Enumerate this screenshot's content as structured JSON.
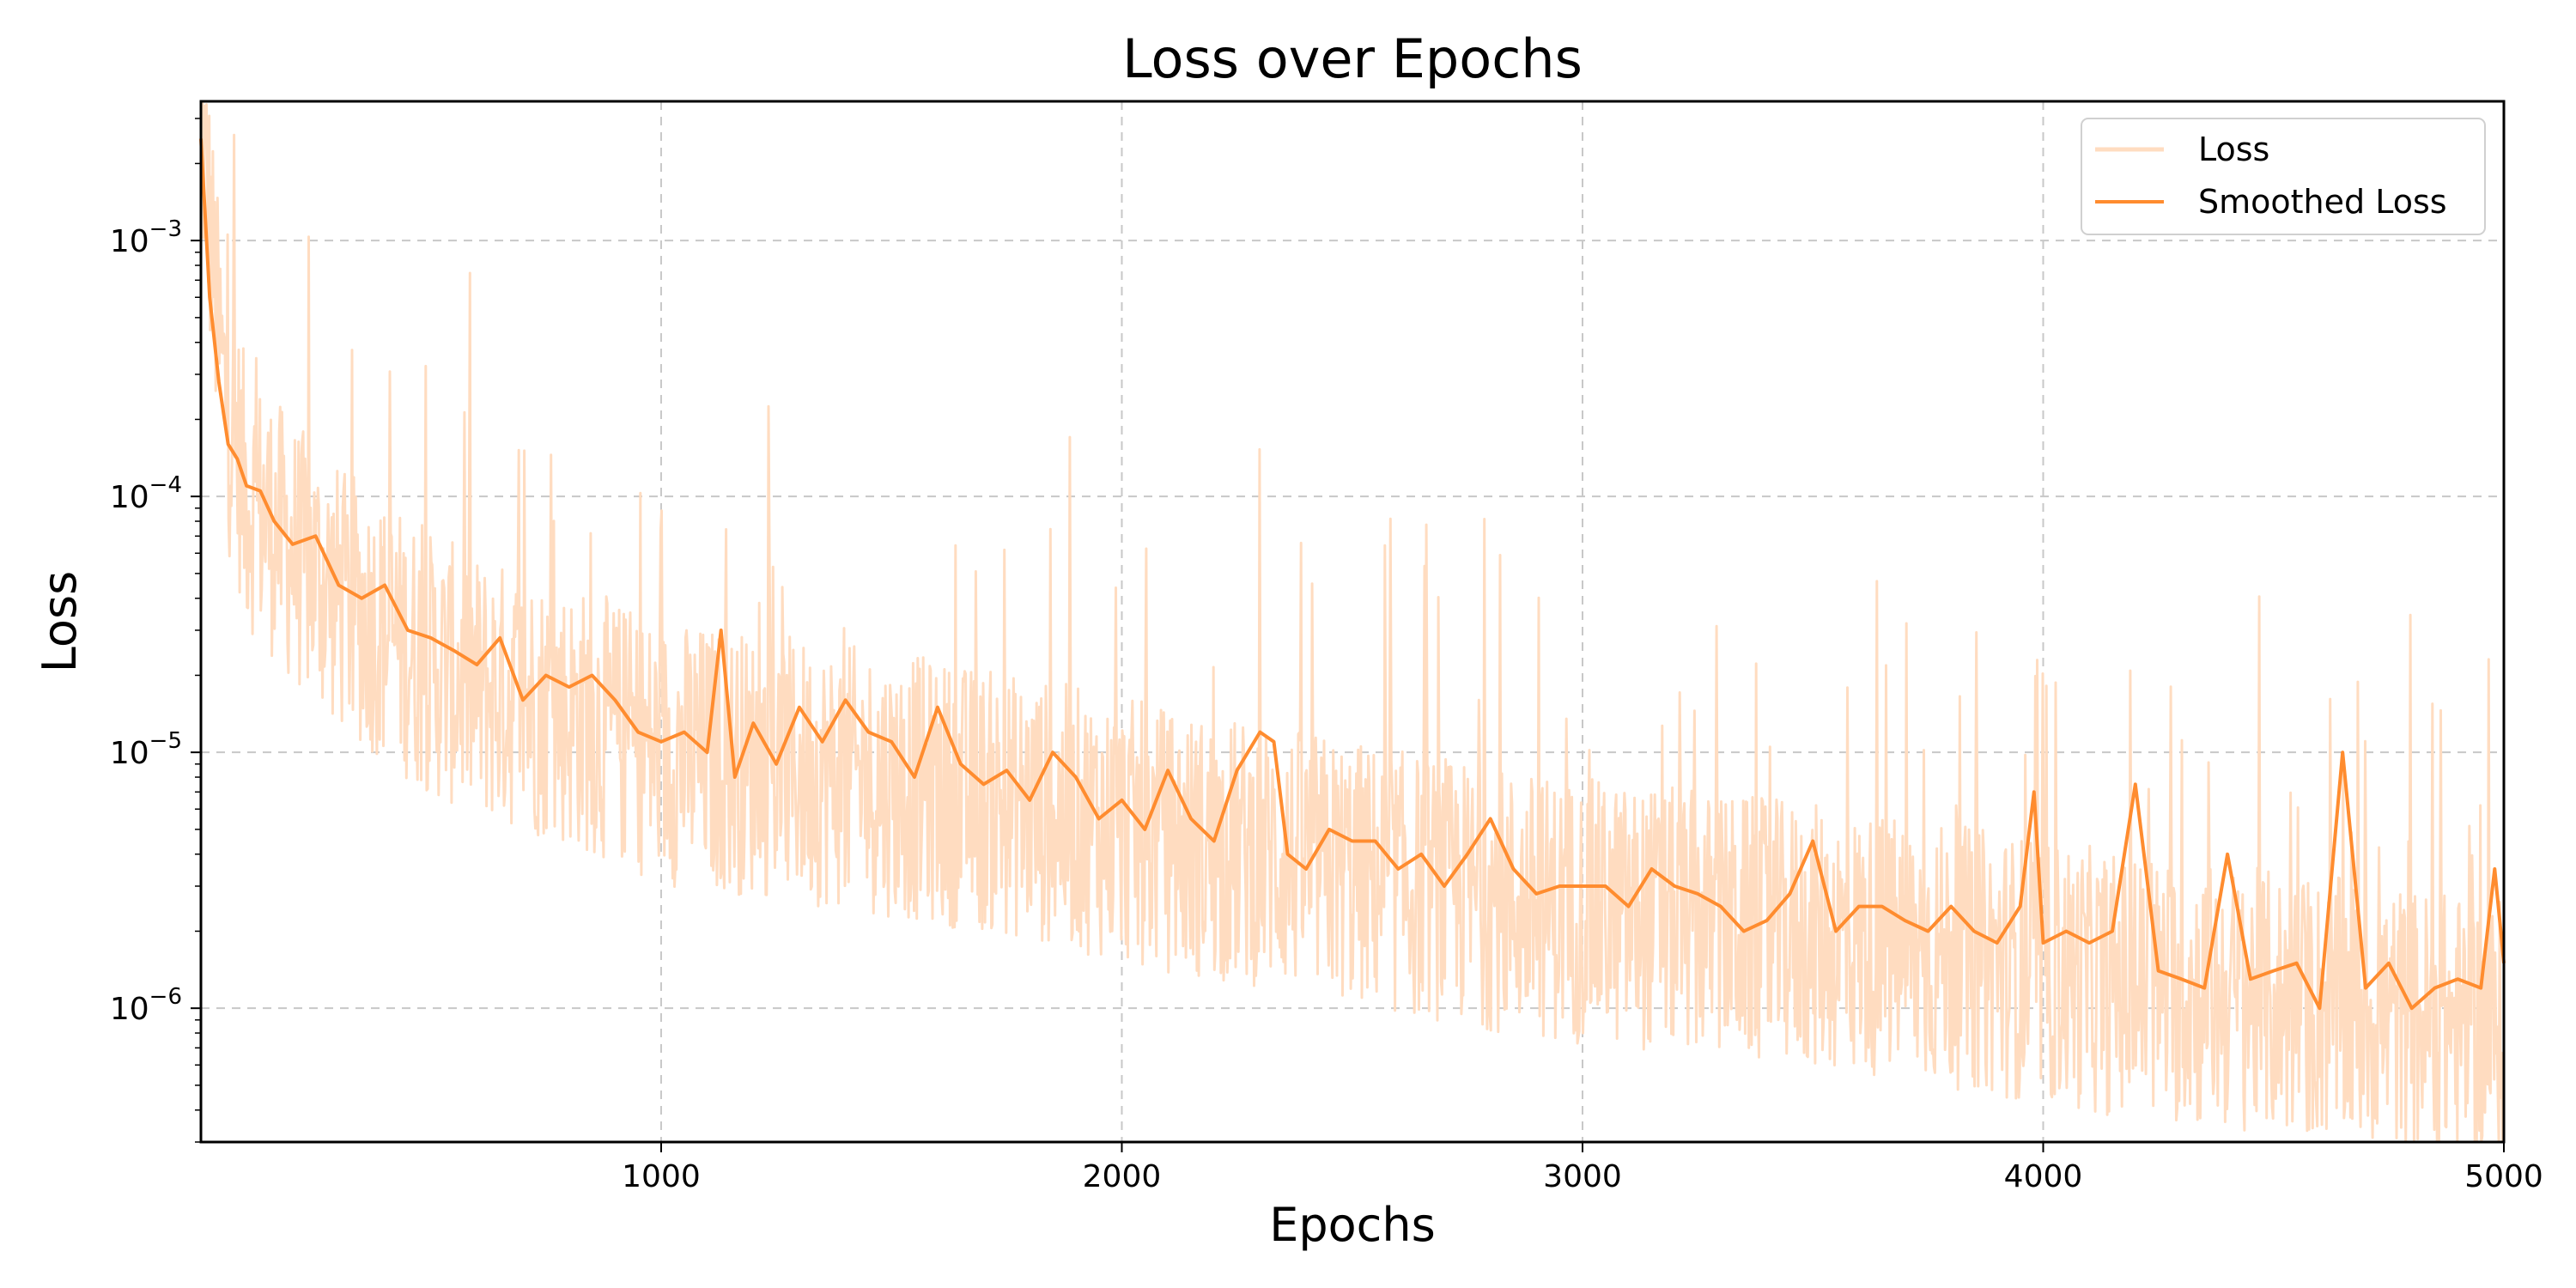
{
  "chart_data": {
    "type": "line",
    "title": "Loss over Epochs",
    "xlabel": "Epochs",
    "ylabel": "Loss",
    "xlim": [
      1,
      5000
    ],
    "ylim": [
      3e-07,
      0.0035
    ],
    "yscale": "log",
    "grid": true,
    "legend": "top-right",
    "x_ticks": [
      1000,
      2000,
      3000,
      4000,
      5000
    ],
    "x_tick_labels": [
      "1000",
      "2000",
      "3000",
      "4000",
      "5000"
    ],
    "y_ticks": [
      1e-06,
      1e-05,
      0.0001,
      0.001
    ],
    "y_tick_labels": [
      {
        "base": "10",
        "exp": "−6"
      },
      {
        "base": "10",
        "exp": "−5"
      },
      {
        "base": "10",
        "exp": "−4"
      },
      {
        "base": "10",
        "exp": "−3"
      }
    ],
    "series": [
      {
        "name": "Loss",
        "color": "#ffdcc0",
        "x": [
          1,
          20,
          40,
          60,
          80,
          100,
          150,
          200,
          250,
          300,
          400,
          500,
          600,
          700,
          800,
          900,
          1000,
          1100,
          1200,
          1300,
          1400,
          1500,
          1600,
          1700,
          1800,
          1900,
          2000,
          2100,
          2200,
          2300,
          2400,
          2500,
          2600,
          2700,
          2800,
          2900,
          3000,
          3100,
          3200,
          3300,
          3400,
          3500,
          3600,
          3700,
          3800,
          3900,
          4000,
          4100,
          4200,
          4300,
          4400,
          4500,
          4600,
          4700,
          4800,
          4900,
          5000
        ],
        "y": [
          0.003,
          0.0012,
          0.0004,
          0.0002,
          0.00015,
          0.0001,
          8e-05,
          6e-05,
          5e-05,
          4e-05,
          3e-05,
          2.2e-05,
          1.8e-05,
          1.6e-05,
          1.4e-05,
          1.2e-05,
          1e-05,
          9.5e-06,
          9e-06,
          8.5e-06,
          8e-06,
          7.5e-06,
          7e-06,
          6.5e-06,
          6e-06,
          5.5e-06,
          5e-06,
          4.5e-06,
          4.2e-06,
          4e-06,
          3.7e-06,
          3.4e-06,
          3.1e-06,
          2.9e-06,
          2.7e-06,
          2.5e-06,
          2.4e-06,
          2.3e-06,
          2.2e-06,
          2.1e-06,
          2e-06,
          1.9e-06,
          1.8e-06,
          1.7e-06,
          1.6e-06,
          1.5e-06,
          1.4e-06,
          1.3e-06,
          1.2e-06,
          1.15e-06,
          1.1e-06,
          1.05e-06,
          1e-06,
          9.5e-07,
          9e-07,
          8.5e-07,
          8e-07
        ]
      },
      {
        "name": "Smoothed Loss",
        "color": "#ff8c2f",
        "x": [
          1,
          20,
          40,
          60,
          80,
          100,
          130,
          160,
          200,
          250,
          300,
          350,
          400,
          450,
          500,
          550,
          600,
          650,
          700,
          750,
          800,
          850,
          900,
          950,
          1000,
          1050,
          1100,
          1130,
          1160,
          1200,
          1250,
          1300,
          1350,
          1400,
          1450,
          1500,
          1550,
          1600,
          1650,
          1700,
          1750,
          1800,
          1850,
          1900,
          1950,
          2000,
          2050,
          2100,
          2150,
          2200,
          2250,
          2300,
          2330,
          2360,
          2400,
          2450,
          2500,
          2550,
          2600,
          2650,
          2700,
          2750,
          2800,
          2850,
          2900,
          2950,
          3000,
          3050,
          3100,
          3150,
          3200,
          3250,
          3300,
          3350,
          3400,
          3450,
          3500,
          3550,
          3600,
          3650,
          3700,
          3750,
          3800,
          3850,
          3900,
          3950,
          3980,
          4000,
          4050,
          4100,
          4150,
          4200,
          4250,
          4300,
          4350,
          4400,
          4450,
          4500,
          4550,
          4600,
          4650,
          4700,
          4750,
          4800,
          4850,
          4900,
          4950,
          4980,
          5000
        ],
        "y": [
          0.0025,
          0.0006,
          0.00028,
          0.00016,
          0.00014,
          0.00011,
          0.000105,
          8e-05,
          6.5e-05,
          7e-05,
          4.5e-05,
          4e-05,
          4.5e-05,
          3e-05,
          2.8e-05,
          2.5e-05,
          2.2e-05,
          2.8e-05,
          1.6e-05,
          2e-05,
          1.8e-05,
          2e-05,
          1.6e-05,
          1.2e-05,
          1.1e-05,
          1.2e-05,
          1e-05,
          3e-05,
          8e-06,
          1.3e-05,
          9e-06,
          1.5e-05,
          1.1e-05,
          1.6e-05,
          1.2e-05,
          1.1e-05,
          8e-06,
          1.5e-05,
          9e-06,
          7.5e-06,
          8.5e-06,
          6.5e-06,
          1e-05,
          8e-06,
          5.5e-06,
          6.5e-06,
          5e-06,
          8.5e-06,
          5.5e-06,
          4.5e-06,
          8.5e-06,
          1.2e-05,
          1.1e-05,
          4e-06,
          3.5e-06,
          5e-06,
          4.5e-06,
          4.5e-06,
          3.5e-06,
          4e-06,
          3e-06,
          4e-06,
          5.5e-06,
          3.5e-06,
          2.8e-06,
          3e-06,
          3e-06,
          3e-06,
          2.5e-06,
          3.5e-06,
          3e-06,
          2.8e-06,
          2.5e-06,
          2e-06,
          2.2e-06,
          2.8e-06,
          4.5e-06,
          2e-06,
          2.5e-06,
          2.5e-06,
          2.2e-06,
          2e-06,
          2.5e-06,
          2e-06,
          1.8e-06,
          2.5e-06,
          7e-06,
          1.8e-06,
          2e-06,
          1.8e-06,
          2e-06,
          7.5e-06,
          1.4e-06,
          1.3e-06,
          1.2e-06,
          4e-06,
          1.3e-06,
          1.4e-06,
          1.5e-06,
          1e-06,
          1e-05,
          1.2e-06,
          1.5e-06,
          1e-06,
          1.2e-06,
          1.3e-06,
          1.2e-06,
          3.5e-06,
          1.5e-06
        ]
      }
    ]
  }
}
